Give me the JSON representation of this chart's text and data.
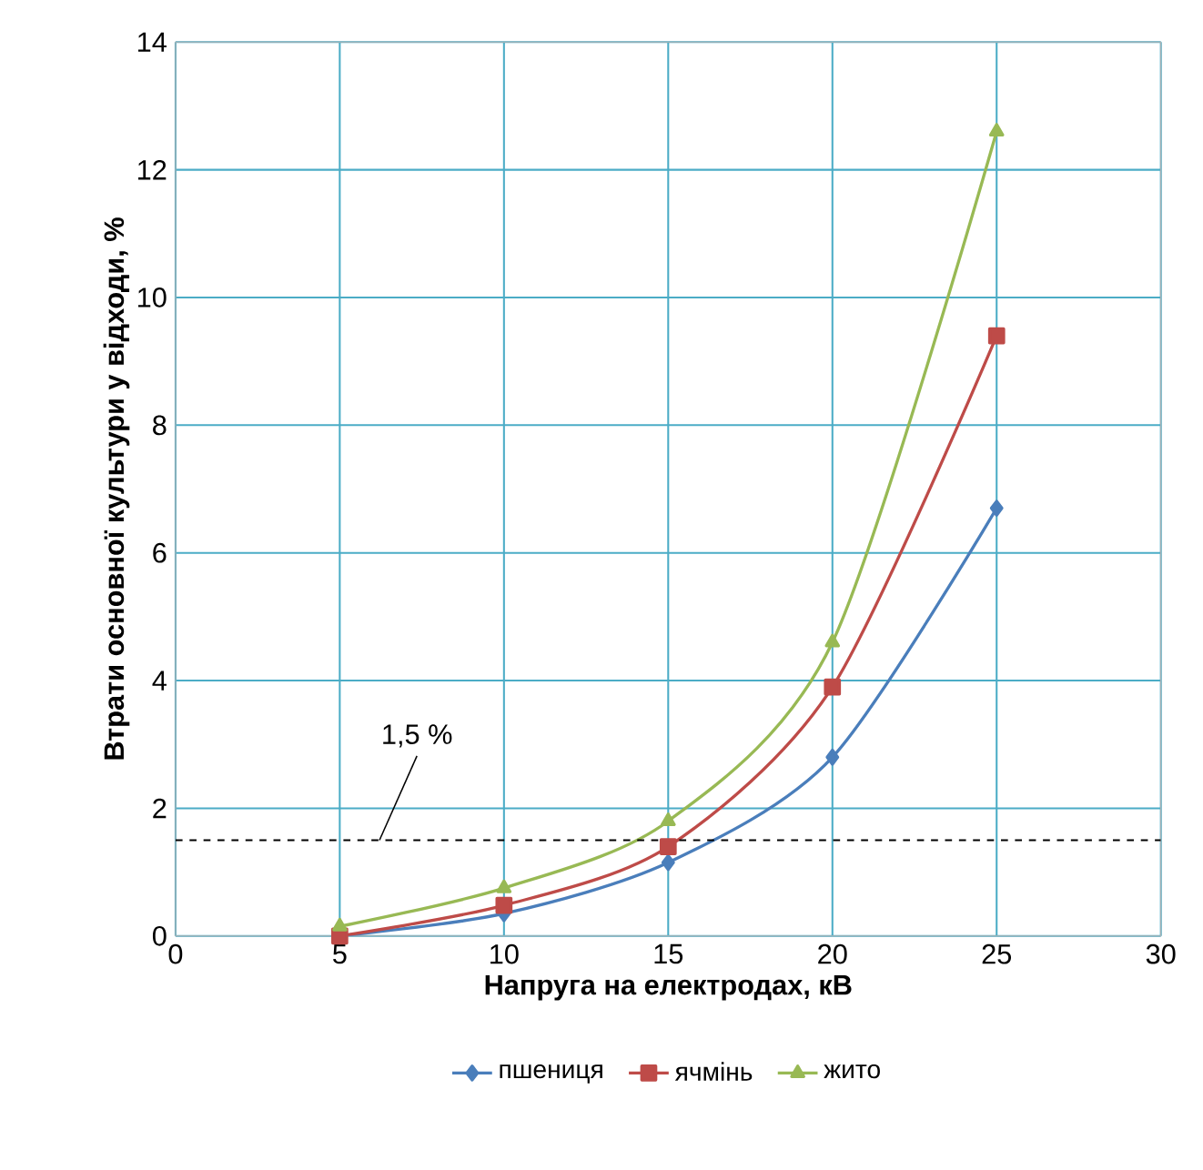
{
  "chart_data": {
    "type": "line",
    "xlabel": "Напруга на електродах, кВ",
    "ylabel": "Втрати основної культури у відходи, %",
    "x": [
      5,
      10,
      15,
      20,
      25
    ],
    "series": [
      {
        "name": "пшениця",
        "color": "#4a7ebb",
        "marker": "diamond",
        "values": [
          0,
          0.35,
          1.15,
          2.8,
          6.7
        ]
      },
      {
        "name": "ячмінь",
        "color": "#be4b48",
        "marker": "square",
        "values": [
          0,
          0.48,
          1.4,
          3.9,
          9.4
        ]
      },
      {
        "name": "жито",
        "color": "#98b954",
        "marker": "triangle",
        "values": [
          0.15,
          0.75,
          1.8,
          4.6,
          12.6
        ]
      }
    ],
    "xlim": [
      0,
      30
    ],
    "xticks": [
      0,
      5,
      10,
      15,
      20,
      25,
      30
    ],
    "ylim": [
      0,
      14
    ],
    "yticks": [
      0,
      2,
      4,
      6,
      8,
      10,
      12,
      14
    ],
    "ref_lines": [
      {
        "axis": "y",
        "value": 1.5,
        "label": "1,5 %",
        "color": "#000000",
        "line_style": "dashed"
      }
    ],
    "grid": true,
    "legend": "bottom",
    "line_style": "solid"
  }
}
